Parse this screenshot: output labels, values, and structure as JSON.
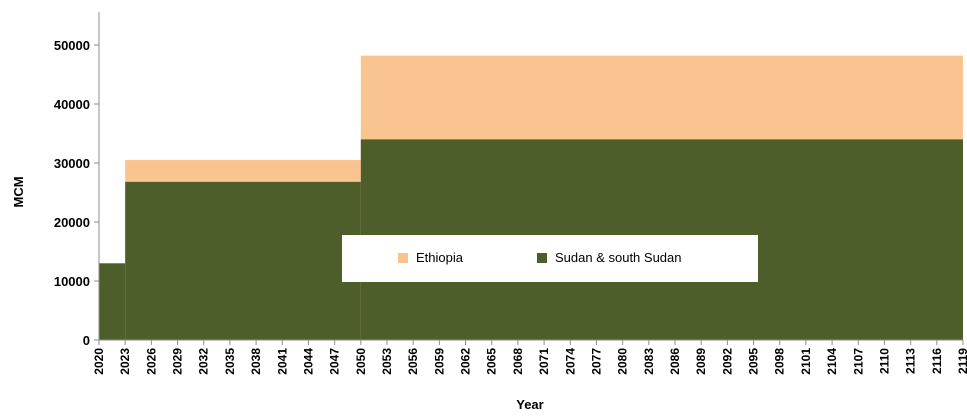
{
  "chart_data": {
    "type": "area",
    "stacked": true,
    "step": true,
    "xlabel": "Year",
    "ylabel": "MCM",
    "ylim": [
      0,
      50000
    ],
    "yticks": [
      0,
      10000,
      20000,
      30000,
      40000,
      50000
    ],
    "x": [
      "2020",
      "2023",
      "2026",
      "2029",
      "2032",
      "2035",
      "2038",
      "2041",
      "2044",
      "2047",
      "2050",
      "2053",
      "2056",
      "2059",
      "2062",
      "2065",
      "2068",
      "2071",
      "2074",
      "2077",
      "2080",
      "2083",
      "2086",
      "2089",
      "2092",
      "2095",
      "2098",
      "2101",
      "2104",
      "2107",
      "2110",
      "2113",
      "2116",
      "2119"
    ],
    "series": [
      {
        "name": "Sudan & south Sudan",
        "color": "#4e5e2a",
        "segments": [
          {
            "from": 2020,
            "to": 2023,
            "value": 13000
          },
          {
            "from": 2023,
            "to": 2050,
            "value": 26800
          },
          {
            "from": 2050,
            "to": 2119,
            "value": 34000
          }
        ]
      },
      {
        "name": "Ethiopia",
        "color": "#fac491",
        "segments": [
          {
            "from": 2020,
            "to": 2023,
            "value": 0
          },
          {
            "from": 2023,
            "to": 2050,
            "value": 3700
          },
          {
            "from": 2050,
            "to": 2119,
            "value": 14200
          }
        ]
      }
    ],
    "legend": {
      "placement": "center",
      "entries": [
        "Ethiopia",
        "Sudan & south Sudan"
      ]
    },
    "grid": false
  }
}
